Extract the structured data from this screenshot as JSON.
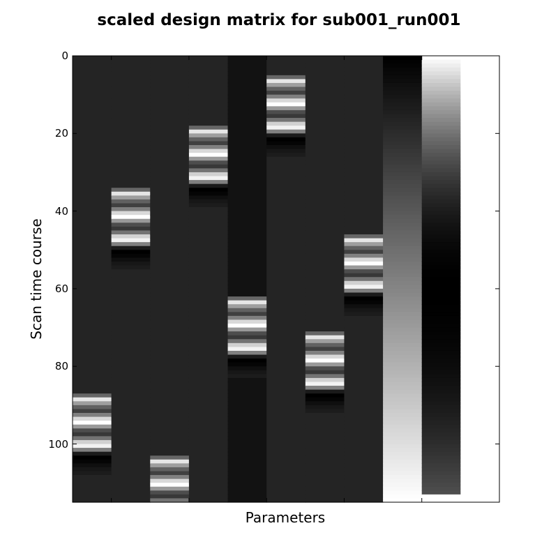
{
  "chart_data": {
    "type": "heatmap",
    "title": "scaled design matrix for sub001_run001",
    "xlabel": "Parameters",
    "ylabel": "Scan time course",
    "colormap": "gray",
    "background_gray": 0.14,
    "n_rows": 115,
    "n_columns": 11,
    "ylim": [
      115,
      0
    ],
    "yticks": [
      0,
      20,
      40,
      60,
      80,
      100
    ],
    "xticks": [
      0.5,
      2.5,
      4.5,
      6.5,
      8.5,
      10.5
    ],
    "task_columns": [
      {
        "column": 0,
        "onset": 87,
        "base": 0.14
      },
      {
        "column": 1,
        "onset": 34,
        "base": 0.14
      },
      {
        "column": 2,
        "onset": 103,
        "base": 0.14
      },
      {
        "column": 3,
        "onset": 18,
        "base": 0.14
      },
      {
        "column": 4,
        "onset": 62,
        "base": 0.07
      },
      {
        "column": 5,
        "onset": 5,
        "base": 0.14
      },
      {
        "column": 6,
        "onset": 71,
        "base": 0.14
      },
      {
        "column": 7,
        "onset": 46,
        "base": 0.14
      }
    ],
    "hrf_profile": [
      0.4,
      0.9,
      0.62,
      0.38,
      0.25,
      0.5,
      0.85,
      1.0,
      0.6,
      0.3,
      0.22,
      0.45,
      0.82,
      0.95,
      0.5,
      0.1,
      0.0,
      0.02,
      0.06,
      0.09,
      0.11
    ],
    "drift_columns": [
      {
        "column": 8,
        "kind": "linear",
        "start": 0.0,
        "end": 1.0
      },
      {
        "column": 9,
        "kind": "quadratic",
        "start": 1.0,
        "min": 0.0,
        "end": 0.33,
        "zero_rows_at_end": 2
      },
      {
        "column": 10,
        "kind": "constant",
        "value": 1.0
      }
    ]
  }
}
